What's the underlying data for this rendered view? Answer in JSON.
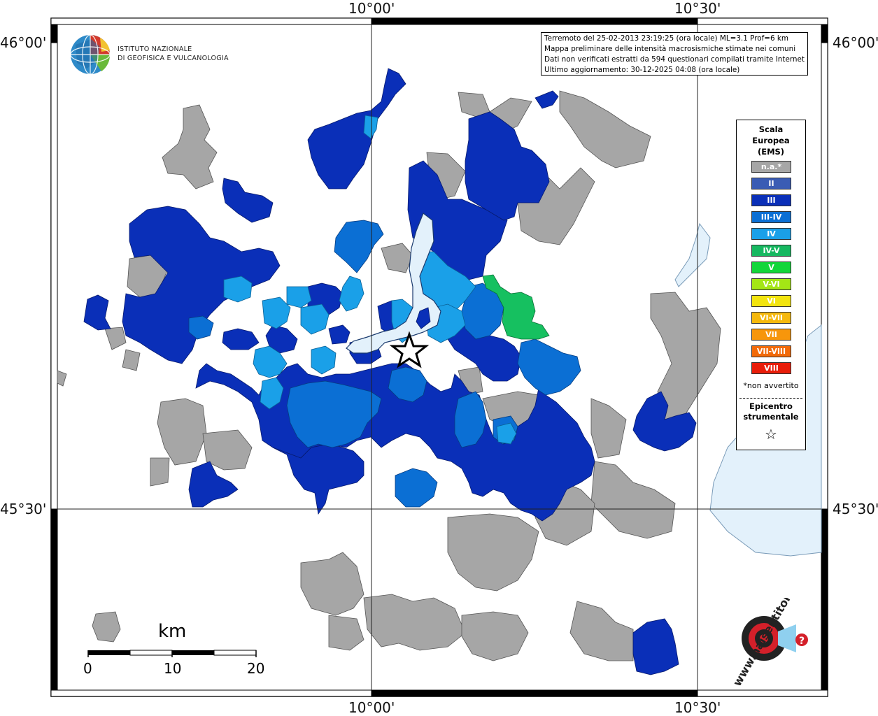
{
  "coordinates": {
    "lon_top_left": "10°00'",
    "lon_top_right": "10°30'",
    "lon_bottom_left": "10°00'",
    "lon_bottom_right": "10°30'",
    "lat_top_left": "46°00'",
    "lat_top_right": "46°00'",
    "lat_bottom_left": "45°30'",
    "lat_bottom_right": "45°30'"
  },
  "info": {
    "line1": "Terremoto del 25-02-2013 23:19:25 (ora locale) ML=3.1 Prof=6 km",
    "line2": "Mappa preliminare delle intensità macrosismiche stimate nei comuni",
    "line3": "Dati non verificati estratti da 594 questionari compilati tramite Internet.",
    "line4": "Ultimo aggiornamento: 30-12-2025 04:08 (ora locale)"
  },
  "logo": {
    "line1": "ISTITUTO NAZIONALE",
    "line2": "DI GEOFISICA E VULCANOLOGIA"
  },
  "legend": {
    "title_line1": "Scala",
    "title_line2": "Europea",
    "title_line3": "(EMS)",
    "items": [
      {
        "label": "n.a.*",
        "color": "#a6a6a6"
      },
      {
        "label": "II",
        "color": "#3a5cb4"
      },
      {
        "label": "III",
        "color": "#0a2fb8"
      },
      {
        "label": "III-IV",
        "color": "#0b6fd4"
      },
      {
        "label": "IV",
        "color": "#1aa0e8"
      },
      {
        "label": "IV-V",
        "color": "#16b860"
      },
      {
        "label": "V",
        "color": "#12d63a"
      },
      {
        "label": "V-VI",
        "color": "#a4e615"
      },
      {
        "label": "VI",
        "color": "#f2e40e"
      },
      {
        "label": "VI-VII",
        "color": "#f5b80c"
      },
      {
        "label": "VII",
        "color": "#f7960b"
      },
      {
        "label": "VII-VIII",
        "color": "#f26a09"
      },
      {
        "label": "VIII",
        "color": "#e81d0a"
      }
    ],
    "note": "*non avvertito",
    "epicenter_line1": "Epicentro",
    "epicenter_line2": "strumentale",
    "epicenter_symbol": "☆"
  },
  "scale_bar": {
    "unit": "km",
    "tick0": "0",
    "tick1": "10",
    "tick2": "20"
  },
  "site_logo": {
    "text": "www.haisentitoilterremoto.it"
  }
}
